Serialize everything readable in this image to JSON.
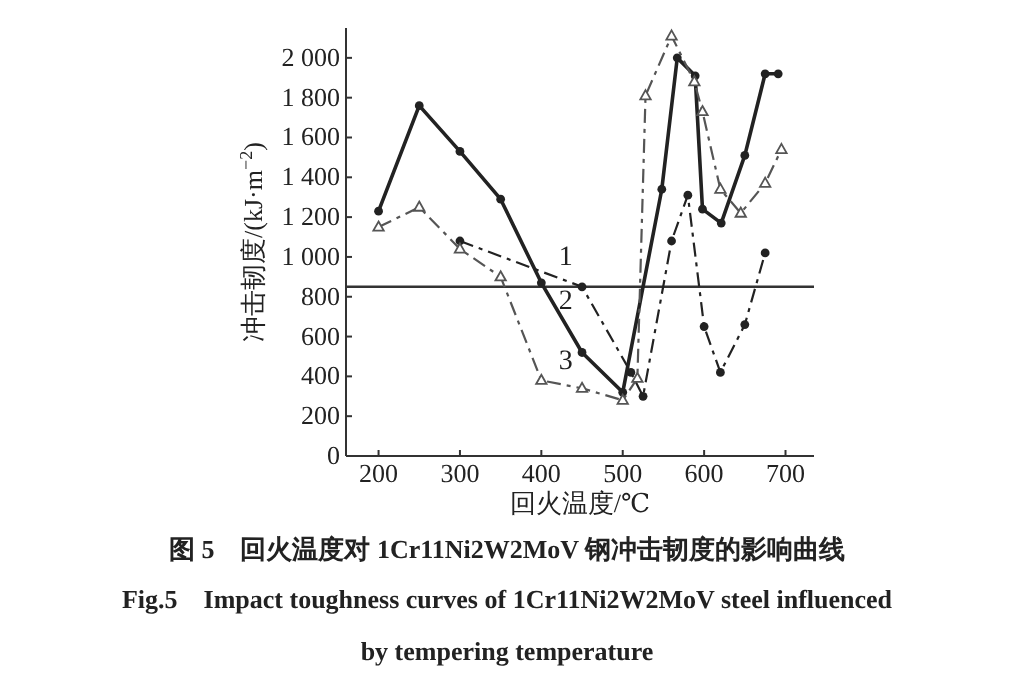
{
  "chart_data": {
    "type": "line",
    "title": "图 5　回火温度对 1Cr11Ni2W2MoV 钢冲击韧度的影响曲线",
    "subtitle": "Fig.5　Impact toughness curves of 1Cr11Ni2W2MoV steel influenced by tempering temperature",
    "xlabel": "回火温度/℃",
    "ylabel": "冲击韧度/(kJ·m$^{−2}$)",
    "xlim": [
      160,
      735
    ],
    "ylim": [
      0,
      2150
    ],
    "xticks": [
      200,
      300,
      400,
      500,
      600,
      700
    ],
    "yticks": [
      0,
      200,
      400,
      600,
      800,
      {
        "value": 1000,
        "label": "1 000"
      },
      {
        "value": 1200,
        "label": "1 200"
      },
      {
        "value": 1400,
        "label": "1 400"
      },
      {
        "value": 1600,
        "label": "1 600"
      },
      {
        "value": 1800,
        "label": "1 800"
      },
      {
        "value": 2000,
        "label": "2 000"
      }
    ],
    "grid": false,
    "series": [
      {
        "name": "1",
        "color": "#222222",
        "marker": "circle",
        "line_style": "dashed",
        "x": [
          300,
          450,
          510,
          525,
          560,
          580,
          600,
          620,
          650,
          675
        ],
        "values": [
          1080,
          850,
          420,
          300,
          1080,
          1310,
          650,
          420,
          660,
          1020
        ]
      },
      {
        "name": "2",
        "color": "#222222",
        "marker": "circle",
        "line_style": "solid",
        "x": [
          200,
          250,
          300,
          350,
          400,
          450,
          500,
          548,
          567,
          589,
          598,
          621,
          650,
          675,
          691
        ],
        "values": [
          1230,
          1760,
          1530,
          1290,
          870,
          520,
          320,
          1340,
          2000,
          1910,
          1240,
          1170,
          1510,
          1920,
          1920
        ]
      },
      {
        "name": "3",
        "color": "#555555",
        "marker": "triangle",
        "line_style": "dashed",
        "x": [
          200,
          250,
          300,
          350,
          400,
          450,
          500,
          518,
          528,
          560,
          588,
          598,
          620,
          645,
          675,
          695
        ],
        "values": [
          1150,
          1250,
          1040,
          900,
          380,
          340,
          280,
          390,
          1810,
          2110,
          1880,
          1730,
          1340,
          1220,
          1370,
          1540
        ]
      }
    ],
    "ref_lines": [
      {
        "axis": "y",
        "value": 850,
        "color": "#333333",
        "line_style": "solid"
      }
    ]
  }
}
